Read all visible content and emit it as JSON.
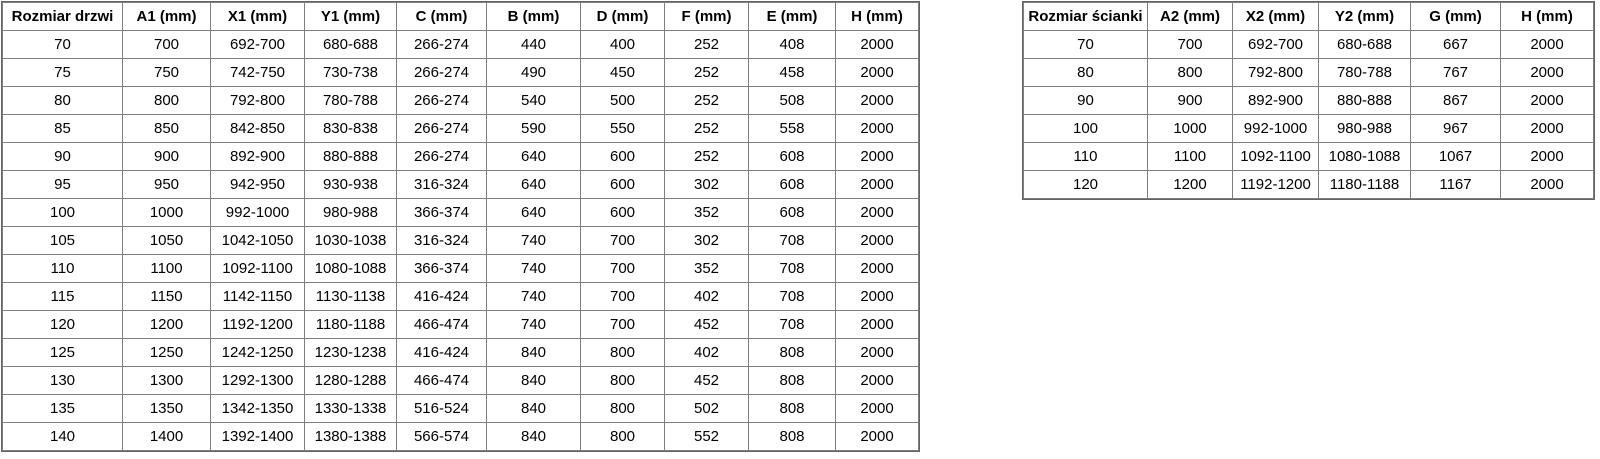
{
  "colors": {
    "background": "#ffffff",
    "border": "#7f7f7f",
    "text": "#000000"
  },
  "door_table": {
    "headers": [
      "Rozmiar drzwi",
      "A1 (mm)",
      "X1 (mm)",
      "Y1 (mm)",
      "C (mm)",
      "B (mm)",
      "D (mm)",
      "F (mm)",
      "E (mm)",
      "H (mm)"
    ],
    "rows": [
      [
        "70",
        "700",
        "692-700",
        "680-688",
        "266-274",
        "440",
        "400",
        "252",
        "408",
        "2000"
      ],
      [
        "75",
        "750",
        "742-750",
        "730-738",
        "266-274",
        "490",
        "450",
        "252",
        "458",
        "2000"
      ],
      [
        "80",
        "800",
        "792-800",
        "780-788",
        "266-274",
        "540",
        "500",
        "252",
        "508",
        "2000"
      ],
      [
        "85",
        "850",
        "842-850",
        "830-838",
        "266-274",
        "590",
        "550",
        "252",
        "558",
        "2000"
      ],
      [
        "90",
        "900",
        "892-900",
        "880-888",
        "266-274",
        "640",
        "600",
        "252",
        "608",
        "2000"
      ],
      [
        "95",
        "950",
        "942-950",
        "930-938",
        "316-324",
        "640",
        "600",
        "302",
        "608",
        "2000"
      ],
      [
        "100",
        "1000",
        "992-1000",
        "980-988",
        "366-374",
        "640",
        "600",
        "352",
        "608",
        "2000"
      ],
      [
        "105",
        "1050",
        "1042-1050",
        "1030-1038",
        "316-324",
        "740",
        "700",
        "302",
        "708",
        "2000"
      ],
      [
        "110",
        "1100",
        "1092-1100",
        "1080-1088",
        "366-374",
        "740",
        "700",
        "352",
        "708",
        "2000"
      ],
      [
        "115",
        "1150",
        "1142-1150",
        "1130-1138",
        "416-424",
        "740",
        "700",
        "402",
        "708",
        "2000"
      ],
      [
        "120",
        "1200",
        "1192-1200",
        "1180-1188",
        "466-474",
        "740",
        "700",
        "452",
        "708",
        "2000"
      ],
      [
        "125",
        "1250",
        "1242-1250",
        "1230-1238",
        "416-424",
        "840",
        "800",
        "402",
        "808",
        "2000"
      ],
      [
        "130",
        "1300",
        "1292-1300",
        "1280-1288",
        "466-474",
        "840",
        "800",
        "452",
        "808",
        "2000"
      ],
      [
        "135",
        "1350",
        "1342-1350",
        "1330-1338",
        "516-524",
        "840",
        "800",
        "502",
        "808",
        "2000"
      ],
      [
        "140",
        "1400",
        "1392-1400",
        "1380-1388",
        "566-574",
        "840",
        "800",
        "552",
        "808",
        "2000"
      ]
    ]
  },
  "wall_table": {
    "headers": [
      "Rozmiar ścianki",
      "A2 (mm)",
      "X2 (mm)",
      "Y2 (mm)",
      "G (mm)",
      "H (mm)"
    ],
    "rows": [
      [
        "70",
        "700",
        "692-700",
        "680-688",
        "667",
        "2000"
      ],
      [
        "80",
        "800",
        "792-800",
        "780-788",
        "767",
        "2000"
      ],
      [
        "90",
        "900",
        "892-900",
        "880-888",
        "867",
        "2000"
      ],
      [
        "100",
        "1000",
        "992-1000",
        "980-988",
        "967",
        "2000"
      ],
      [
        "110",
        "1100",
        "1092-1100",
        "1080-1088",
        "1067",
        "2000"
      ],
      [
        "120",
        "1200",
        "1192-1200",
        "1180-1188",
        "1167",
        "2000"
      ]
    ]
  }
}
